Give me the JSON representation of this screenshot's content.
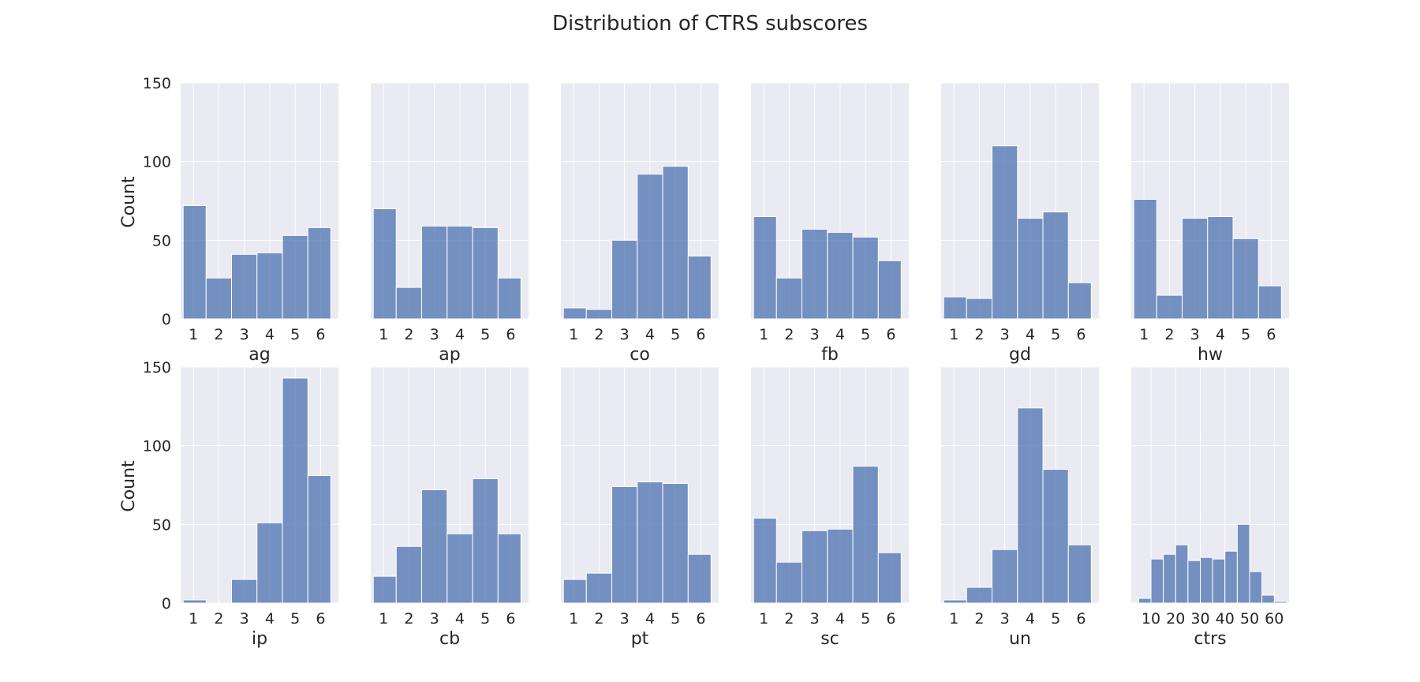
{
  "figure": {
    "title": "Distribution of CTRS subscores"
  },
  "chart_data": {
    "type": "histogram-grid",
    "ylabel": "Count",
    "ylim": [
      0,
      150
    ],
    "yticks": [
      0,
      50,
      100,
      150
    ],
    "panels": [
      {
        "xlabel": "ag",
        "xlim": [
          0.5,
          6.7
        ],
        "xticks": [
          1,
          2,
          3,
          4,
          5,
          6
        ],
        "bin_edges": [
          0.6,
          1.5,
          2.5,
          3.5,
          4.5,
          5.5,
          6.4
        ],
        "counts": [
          72,
          26,
          41,
          42,
          53,
          58
        ]
      },
      {
        "xlabel": "ap",
        "xlim": [
          0.5,
          6.7
        ],
        "xticks": [
          1,
          2,
          3,
          4,
          5,
          6
        ],
        "bin_edges": [
          0.6,
          1.5,
          2.5,
          3.5,
          4.5,
          5.5,
          6.4
        ],
        "counts": [
          70,
          20,
          59,
          59,
          58,
          26
        ]
      },
      {
        "xlabel": "co",
        "xlim": [
          0.5,
          6.7
        ],
        "xticks": [
          1,
          2,
          3,
          4,
          5,
          6
        ],
        "bin_edges": [
          0.6,
          1.5,
          2.5,
          3.5,
          4.5,
          5.5,
          6.4
        ],
        "counts": [
          7,
          6,
          50,
          92,
          97,
          40
        ]
      },
      {
        "xlabel": "fb",
        "xlim": [
          0.5,
          6.7
        ],
        "xticks": [
          1,
          2,
          3,
          4,
          5,
          6
        ],
        "bin_edges": [
          0.6,
          1.5,
          2.5,
          3.5,
          4.5,
          5.5,
          6.4
        ],
        "counts": [
          65,
          26,
          57,
          55,
          52,
          37
        ]
      },
      {
        "xlabel": "gd",
        "xlim": [
          0.5,
          6.7
        ],
        "xticks": [
          1,
          2,
          3,
          4,
          5,
          6
        ],
        "bin_edges": [
          0.6,
          1.5,
          2.5,
          3.5,
          4.5,
          5.5,
          6.4
        ],
        "counts": [
          14,
          13,
          110,
          64,
          68,
          23
        ]
      },
      {
        "xlabel": "hw",
        "xlim": [
          0.5,
          6.7
        ],
        "xticks": [
          1,
          2,
          3,
          4,
          5,
          6
        ],
        "bin_edges": [
          0.6,
          1.5,
          2.5,
          3.5,
          4.5,
          5.5,
          6.4
        ],
        "counts": [
          76,
          15,
          64,
          65,
          51,
          21
        ]
      },
      {
        "xlabel": "ip",
        "xlim": [
          0.5,
          6.7
        ],
        "xticks": [
          1,
          2,
          3,
          4,
          5,
          6
        ],
        "bin_edges": [
          0.6,
          1.5,
          2.5,
          3.5,
          4.5,
          5.5,
          6.4
        ],
        "counts": [
          2,
          0,
          15,
          51,
          143,
          81
        ]
      },
      {
        "xlabel": "cb",
        "xlim": [
          0.5,
          6.7
        ],
        "xticks": [
          1,
          2,
          3,
          4,
          5,
          6
        ],
        "bin_edges": [
          0.6,
          1.5,
          2.5,
          3.5,
          4.5,
          5.5,
          6.4
        ],
        "counts": [
          17,
          36,
          72,
          44,
          79,
          44
        ]
      },
      {
        "xlabel": "pt",
        "xlim": [
          0.5,
          6.7
        ],
        "xticks": [
          1,
          2,
          3,
          4,
          5,
          6
        ],
        "bin_edges": [
          0.6,
          1.5,
          2.5,
          3.5,
          4.5,
          5.5,
          6.4
        ],
        "counts": [
          15,
          19,
          74,
          77,
          76,
          31
        ]
      },
      {
        "xlabel": "sc",
        "xlim": [
          0.5,
          6.7
        ],
        "xticks": [
          1,
          2,
          3,
          4,
          5,
          6
        ],
        "bin_edges": [
          0.6,
          1.5,
          2.5,
          3.5,
          4.5,
          5.5,
          6.4
        ],
        "counts": [
          54,
          26,
          46,
          47,
          87,
          32
        ]
      },
      {
        "xlabel": "un",
        "xlim": [
          0.5,
          6.7
        ],
        "xticks": [
          1,
          2,
          3,
          4,
          5,
          6
        ],
        "bin_edges": [
          0.6,
          1.5,
          2.5,
          3.5,
          4.5,
          5.5,
          6.4
        ],
        "counts": [
          2,
          10,
          34,
          124,
          85,
          37
        ]
      },
      {
        "xlabel": "ctrs",
        "xlim": [
          2,
          66
        ],
        "xticks": [
          10,
          20,
          30,
          40,
          50,
          60
        ],
        "bin_edges": [
          5,
          10,
          15,
          20,
          25,
          30,
          35,
          40,
          45,
          50,
          55,
          60,
          65
        ],
        "counts": [
          3,
          28,
          31,
          37,
          27,
          29,
          28,
          33,
          50,
          20,
          5,
          1
        ]
      }
    ]
  },
  "colors": {
    "bar": "#4c72b0",
    "panel_bg": "#eaeaf2",
    "grid": "#ffffff"
  }
}
